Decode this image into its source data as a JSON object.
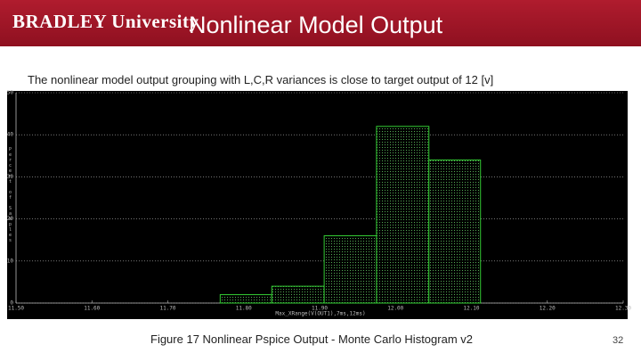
{
  "header": {
    "logo": "BRADLEY University",
    "title": "Nonlinear Model Output"
  },
  "subtitle": "The nonlinear model output grouping with L,C,R variances is close to target output of 12 [v]",
  "chart_data": {
    "type": "histogram",
    "xlabel": "Max_XRange(V(OUT1),7ms,12ms)",
    "ylabel": "Percent of Samples",
    "bins": [
      11.769,
      11.837,
      11.906,
      11.975,
      12.044,
      12.112
    ],
    "values": [
      2,
      4,
      16,
      42,
      34
    ],
    "color": "#3c3",
    "xlim": [
      11.5,
      12.3
    ],
    "xticks": [
      {
        "value": 11.5,
        "label": "11.50"
      },
      {
        "value": 11.6,
        "label": "11.60"
      },
      {
        "value": 11.7,
        "label": "11.70"
      },
      {
        "value": 11.8,
        "label": "11.80"
      },
      {
        "value": 11.9,
        "label": "11.90"
      },
      {
        "value": 12.0,
        "label": "12.00"
      },
      {
        "value": 12.1,
        "label": "12.10"
      },
      {
        "value": 12.2,
        "label": "12.20"
      },
      {
        "value": 12.3,
        "label": "12.30"
      }
    ],
    "ylim": [
      0,
      50
    ],
    "yticks": [
      0,
      10,
      20,
      30,
      40,
      50
    ],
    "grid": true
  },
  "caption": "Figure 17 Nonlinear Pspice Output - Monte Carlo Histogram v2",
  "page_number": "32"
}
